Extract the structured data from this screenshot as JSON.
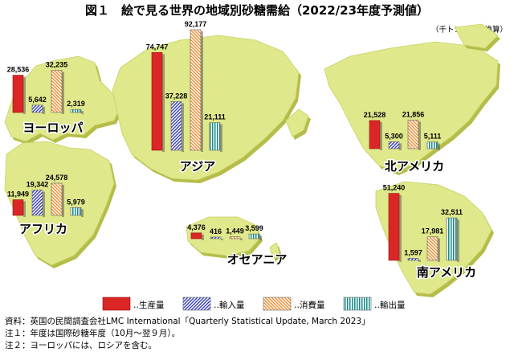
{
  "title": "図１　絵で見る世界の地域別砂糖需給（2022/23年度予測値）",
  "unit": "（千トン（粗糖換算）",
  "colors": {
    "production": "#dc2626",
    "import": "#3a3fb5",
    "consumption": "#f08a2c",
    "export": "#138a8a",
    "land": "#dfe88a",
    "land_edge": "#b5bd4a"
  },
  "legend": [
    {
      "key": "production",
      "label": "‥生産量"
    },
    {
      "key": "import",
      "label": "‥輸入量"
    },
    {
      "key": "consumption",
      "label": "‥消費量"
    },
    {
      "key": "export",
      "label": "‥輸出量"
    }
  ],
  "chart_data": {
    "type": "bar",
    "title": "図１　絵で見る世界の地域別砂糖需給（2022/23年度予測値）",
    "unit": "千トン（粗糖換算）",
    "series_names": [
      "生産量",
      "輸入量",
      "消費量",
      "輸出量"
    ],
    "regions": [
      {
        "name": "ヨーロッパ",
        "values": [
          28536,
          5642,
          32235,
          2319
        ]
      },
      {
        "name": "アフリカ",
        "values": [
          11949,
          19342,
          24578,
          5979
        ]
      },
      {
        "name": "アジア",
        "values": [
          74747,
          37228,
          92177,
          21111
        ]
      },
      {
        "name": "オセアニア",
        "values": [
          4376,
          416,
          1449,
          3599
        ]
      },
      {
        "name": "北アメリカ",
        "values": [
          21528,
          5300,
          21856,
          5111
        ]
      },
      {
        "name": "南アメリカ",
        "values": [
          51240,
          1597,
          17981,
          32511
        ]
      }
    ]
  },
  "notes": [
    "資料：英国の民間調査会社LMC International「Quarterly Statistical Update, March 2023」",
    "注１：年度は国際砂糖年度（10月～翌９月）。",
    "注２：ヨーロッパには、ロシアを含む。"
  ]
}
